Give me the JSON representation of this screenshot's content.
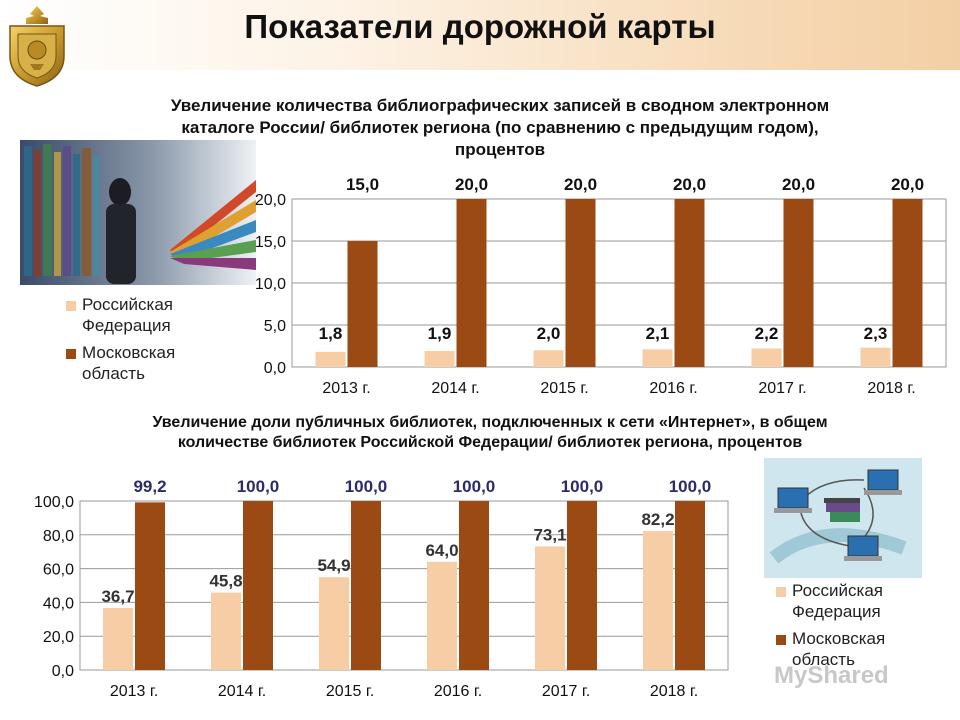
{
  "page": {
    "title": "Показатели дорожной карты"
  },
  "colors": {
    "rf": "#f7cda6",
    "mo": "#9a4a12"
  },
  "legend": {
    "rf": "Российская Федерация",
    "mo": "Московская область"
  },
  "watermark": "MyShared",
  "chart_data": [
    {
      "type": "bar",
      "title": "Увеличение количества библиографических записей в сводном электронном каталоге России/ библиотек региона (по сравнению с предыдущим годом), процентов",
      "categories": [
        "2013 г.",
        "2014 г.",
        "2015 г.",
        "2016 г.",
        "2017 г.",
        "2018 г."
      ],
      "series": [
        {
          "name": "Российская Федерация",
          "values": [
            1.8,
            1.9,
            2.0,
            2.1,
            2.2,
            2.3
          ]
        },
        {
          "name": "Московская область",
          "values": [
            15.0,
            20.0,
            20.0,
            20.0,
            20.0,
            20.0
          ]
        }
      ],
      "ylim": [
        0,
        20
      ],
      "yticks": [
        "0,0",
        "5,0",
        "10,0",
        "15,0",
        "20,0"
      ],
      "grid": true,
      "legend_position": "left"
    },
    {
      "type": "bar",
      "title": "Увеличение доли публичных библиотек, подключенных к сети «Интернет», в общем количестве библиотек Российской Федерации/ библиотек региона, процентов",
      "categories": [
        "2013 г.",
        "2014 г.",
        "2015 г.",
        "2016 г.",
        "2017 г.",
        "2018 г."
      ],
      "series": [
        {
          "name": "Российская Федерация",
          "values": [
            36.7,
            45.8,
            54.9,
            64.0,
            73.1,
            82.2
          ]
        },
        {
          "name": "Московская область",
          "values": [
            99.2,
            100.0,
            100.0,
            100.0,
            100.0,
            100.0
          ]
        }
      ],
      "ylim": [
        0,
        100
      ],
      "yticks": [
        "0,0",
        "20,0",
        "40,0",
        "60,0",
        "80,0",
        "100,0"
      ],
      "grid": true,
      "legend_position": "right"
    }
  ]
}
